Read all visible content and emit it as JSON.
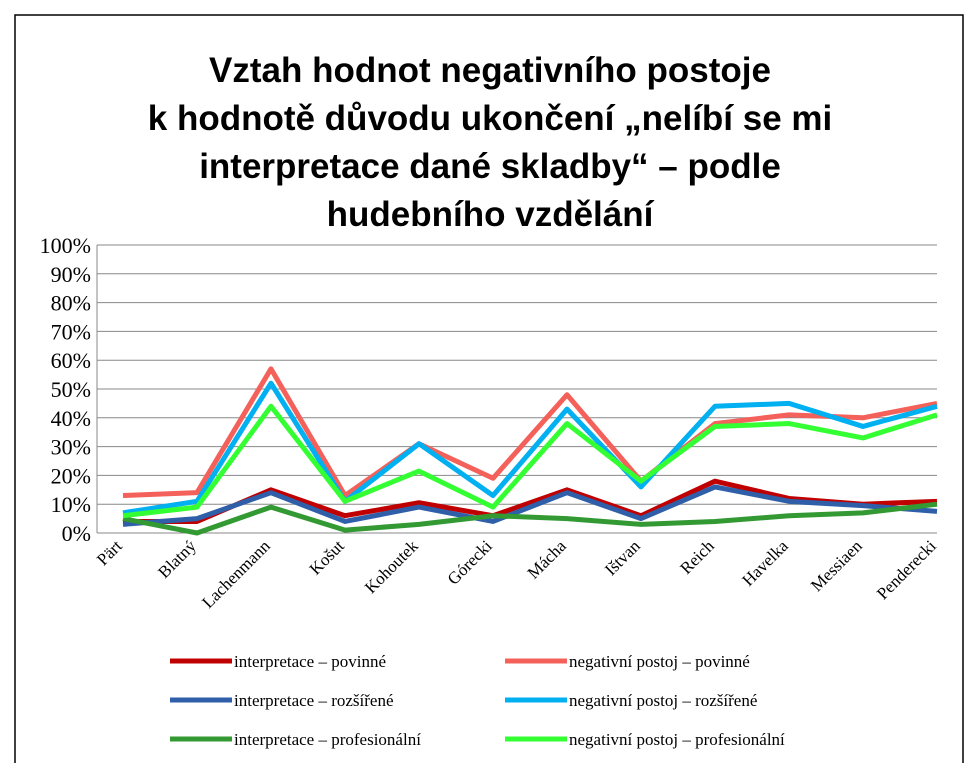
{
  "chart_data": {
    "type": "line",
    "title": [
      "Vztah hodnot negativního postoje",
      "k hodnotě důvodu ukončení „nelíbí se mi",
      "interpretace dané skladby“   – podle",
      "hudebního vzdělání"
    ],
    "categories": [
      "Pärt",
      "Blatný",
      "Lachenmann",
      "Košut",
      "Kohoutek",
      "Górecki",
      "Mácha",
      "Ištvan",
      "Reich",
      "Havelka",
      "Messiaen",
      "Penderecki"
    ],
    "series": [
      {
        "name": "interpretace  – povinné",
        "color": "#c00000",
        "values": [
          4,
          4,
          15,
          6,
          10.5,
          6,
          15,
          6,
          18,
          12,
          10,
          11
        ]
      },
      {
        "name": "negativní postoj  – povinné",
        "color": "#f4605a",
        "values": [
          13,
          14,
          57,
          13,
          31,
          19,
          48,
          18,
          38,
          41,
          40,
          45
        ]
      },
      {
        "name": "interpretace  – rozšířené",
        "color": "#2e5fa8",
        "values": [
          3,
          5,
          14,
          4,
          9,
          4,
          14,
          5,
          16,
          11,
          9.5,
          7.5
        ]
      },
      {
        "name": "negativní postoj  – rozšířené",
        "color": "#00b0f0",
        "values": [
          7,
          11,
          52,
          11,
          31,
          13,
          43,
          16,
          44,
          45,
          37,
          44
        ]
      },
      {
        "name": "interpretace  – profesionální",
        "color": "#339933",
        "values": [
          5,
          0,
          9,
          1,
          3,
          6,
          5,
          3,
          4,
          6,
          7,
          10
        ]
      },
      {
        "name": "negativní postoj  – profesionální",
        "color": "#33ff33",
        "values": [
          6,
          9,
          44,
          11,
          21.5,
          9,
          38,
          18,
          37,
          38,
          33,
          41
        ]
      }
    ],
    "ylim": [
      0,
      100
    ],
    "yticks": [
      {
        "value": 0,
        "label": "0%"
      },
      {
        "value": 10,
        "label": "10%"
      },
      {
        "value": 20,
        "label": "20%"
      },
      {
        "value": 30,
        "label": "30%"
      },
      {
        "value": 40,
        "label": "40%"
      },
      {
        "value": 50,
        "label": "50%"
      },
      {
        "value": 60,
        "label": "60%"
      },
      {
        "value": 70,
        "label": "70%"
      },
      {
        "value": 80,
        "label": "80%"
      },
      {
        "value": 90,
        "label": "90%"
      },
      {
        "value": 100,
        "label": "100%"
      }
    ],
    "grid": true,
    "legend": "bottom"
  }
}
